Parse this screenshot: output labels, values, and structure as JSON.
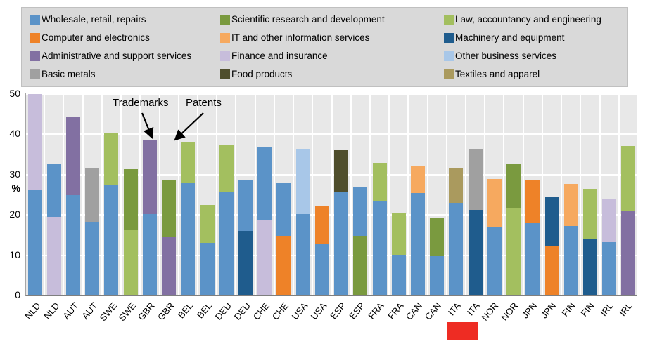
{
  "legend": {
    "items": [
      {
        "key": "wholesale",
        "label": "Wholesale, retail, repairs"
      },
      {
        "key": "computer",
        "label": "Computer and electronics"
      },
      {
        "key": "admin",
        "label": "Administrative and support services"
      },
      {
        "key": "basic_metals",
        "label": "Basic metals"
      },
      {
        "key": "scientific",
        "label": "Scientific research and development"
      },
      {
        "key": "it_services",
        "label": "IT and other information services"
      },
      {
        "key": "finance",
        "label": "Finance and insurance"
      },
      {
        "key": "food",
        "label": "Food products"
      },
      {
        "key": "law",
        "label": "Law, accountancy and engineering"
      },
      {
        "key": "machinery",
        "label": "Machinery and equipment"
      },
      {
        "key": "other_business",
        "label": "Other business services"
      },
      {
        "key": "textiles",
        "label": "Textiles and apparel"
      }
    ]
  },
  "colors": {
    "wholesale": "#5b93c8",
    "computer": "#ee8228",
    "admin": "#8270a2",
    "basic_metals": "#a0a0a0",
    "scientific": "#7a9a3f",
    "it_services": "#f6a95f",
    "finance": "#c7bddb",
    "food": "#4f4e2c",
    "law": "#a3bf5f",
    "machinery": "#1f5c8d",
    "other_business": "#a8c7e8",
    "textiles": "#aa9a5e"
  },
  "annotations": {
    "trademarks": "Trademarks",
    "patents": "Patents"
  },
  "highlight": {
    "color": "#ee2c23"
  },
  "chart_data": {
    "type": "bar",
    "stacked": true,
    "ylabel": "%",
    "ylim": [
      0,
      50
    ],
    "yticks": [
      0,
      10,
      20,
      30,
      40,
      50
    ],
    "grid": true,
    "legend_position": "top",
    "bar_pair_annotation": {
      "first": "Trademarks",
      "second": "Patents"
    },
    "bars": [
      {
        "country": "NLD",
        "type": "Trademarks",
        "segments": [
          {
            "sector": "wholesale",
            "value": 26.0
          },
          {
            "sector": "finance",
            "value": 23.8
          }
        ]
      },
      {
        "country": "NLD",
        "type": "Patents",
        "segments": [
          {
            "sector": "finance",
            "value": 19.3
          },
          {
            "sector": "wholesale",
            "value": 13.2
          }
        ]
      },
      {
        "country": "AUT",
        "type": "Trademarks",
        "segments": [
          {
            "sector": "wholesale",
            "value": 24.7
          },
          {
            "sector": "admin",
            "value": 19.5
          }
        ]
      },
      {
        "country": "AUT",
        "type": "Patents",
        "segments": [
          {
            "sector": "wholesale",
            "value": 18.1
          },
          {
            "sector": "basic_metals",
            "value": 13.2
          }
        ]
      },
      {
        "country": "SWE",
        "type": "Trademarks",
        "segments": [
          {
            "sector": "wholesale",
            "value": 27.1
          },
          {
            "sector": "law",
            "value": 13.1
          }
        ]
      },
      {
        "country": "SWE",
        "type": "Patents",
        "segments": [
          {
            "sector": "law",
            "value": 16.0
          },
          {
            "sector": "scientific",
            "value": 15.2
          }
        ]
      },
      {
        "country": "GBR",
        "type": "Trademarks",
        "segments": [
          {
            "sector": "wholesale",
            "value": 20.0
          },
          {
            "sector": "admin",
            "value": 18.5
          }
        ]
      },
      {
        "country": "GBR",
        "type": "Patents",
        "segments": [
          {
            "sector": "admin",
            "value": 14.5
          },
          {
            "sector": "scientific",
            "value": 14.1
          }
        ]
      },
      {
        "country": "BEL",
        "type": "Trademarks",
        "segments": [
          {
            "sector": "wholesale",
            "value": 27.9
          },
          {
            "sector": "law",
            "value": 10.1
          }
        ]
      },
      {
        "country": "BEL",
        "type": "Patents",
        "segments": [
          {
            "sector": "wholesale",
            "value": 12.9
          },
          {
            "sector": "law",
            "value": 9.4
          }
        ]
      },
      {
        "country": "DEU",
        "type": "Trademarks",
        "segments": [
          {
            "sector": "wholesale",
            "value": 25.6
          },
          {
            "sector": "law",
            "value": 11.6
          }
        ]
      },
      {
        "country": "DEU",
        "type": "Patents",
        "segments": [
          {
            "sector": "machinery",
            "value": 15.8
          },
          {
            "sector": "wholesale",
            "value": 12.8
          }
        ]
      },
      {
        "country": "CHE",
        "type": "Trademarks",
        "segments": [
          {
            "sector": "finance",
            "value": 18.5
          },
          {
            "sector": "wholesale",
            "value": 18.2
          }
        ]
      },
      {
        "country": "CHE",
        "type": "Patents",
        "segments": [
          {
            "sector": "computer",
            "value": 14.6
          },
          {
            "sector": "wholesale",
            "value": 13.2
          }
        ]
      },
      {
        "country": "USA",
        "type": "Trademarks",
        "segments": [
          {
            "sector": "wholesale",
            "value": 20.1
          },
          {
            "sector": "other_business",
            "value": 16.2
          }
        ]
      },
      {
        "country": "USA",
        "type": "Patents",
        "segments": [
          {
            "sector": "wholesale",
            "value": 12.7
          },
          {
            "sector": "computer",
            "value": 9.5
          }
        ]
      },
      {
        "country": "ESP",
        "type": "Trademarks",
        "segments": [
          {
            "sector": "wholesale",
            "value": 25.6
          },
          {
            "sector": "food",
            "value": 10.4
          }
        ]
      },
      {
        "country": "ESP",
        "type": "Patents",
        "segments": [
          {
            "sector": "scientific",
            "value": 14.7
          },
          {
            "sector": "wholesale",
            "value": 11.9
          }
        ]
      },
      {
        "country": "FRA",
        "type": "Trademarks",
        "segments": [
          {
            "sector": "wholesale",
            "value": 23.1
          },
          {
            "sector": "law",
            "value": 9.7
          }
        ]
      },
      {
        "country": "FRA",
        "type": "Patents",
        "segments": [
          {
            "sector": "wholesale",
            "value": 10.0
          },
          {
            "sector": "law",
            "value": 10.3
          }
        ]
      },
      {
        "country": "CAN",
        "type": "Trademarks",
        "segments": [
          {
            "sector": "wholesale",
            "value": 25.3
          },
          {
            "sector": "it_services",
            "value": 6.7
          }
        ]
      },
      {
        "country": "CAN",
        "type": "Patents",
        "segments": [
          {
            "sector": "wholesale",
            "value": 9.6
          },
          {
            "sector": "scientific",
            "value": 9.6
          }
        ]
      },
      {
        "country": "ITA",
        "type": "Trademarks",
        "segments": [
          {
            "sector": "wholesale",
            "value": 22.8
          },
          {
            "sector": "textiles",
            "value": 8.8
          }
        ]
      },
      {
        "country": "ITA",
        "type": "Patents",
        "segments": [
          {
            "sector": "machinery",
            "value": 21.0
          },
          {
            "sector": "basic_metals",
            "value": 15.2
          }
        ]
      },
      {
        "country": "NOR",
        "type": "Trademarks",
        "segments": [
          {
            "sector": "wholesale",
            "value": 16.9
          },
          {
            "sector": "it_services",
            "value": 11.9
          }
        ]
      },
      {
        "country": "NOR",
        "type": "Patents",
        "segments": [
          {
            "sector": "law",
            "value": 21.4
          },
          {
            "sector": "scientific",
            "value": 11.1
          }
        ]
      },
      {
        "country": "JPN",
        "type": "Trademarks",
        "segments": [
          {
            "sector": "wholesale",
            "value": 17.9
          },
          {
            "sector": "computer",
            "value": 10.7
          }
        ]
      },
      {
        "country": "JPN",
        "type": "Patents",
        "segments": [
          {
            "sector": "computer",
            "value": 12.0
          },
          {
            "sector": "machinery",
            "value": 12.3
          }
        ]
      },
      {
        "country": "FIN",
        "type": "Trademarks",
        "segments": [
          {
            "sector": "wholesale",
            "value": 17.1
          },
          {
            "sector": "it_services",
            "value": 10.5
          }
        ]
      },
      {
        "country": "FIN",
        "type": "Patents",
        "segments": [
          {
            "sector": "machinery",
            "value": 13.9
          },
          {
            "sector": "law",
            "value": 12.4
          }
        ]
      },
      {
        "country": "IRL",
        "type": "Trademarks",
        "segments": [
          {
            "sector": "wholesale",
            "value": 13.0
          },
          {
            "sector": "finance",
            "value": 10.7
          }
        ]
      },
      {
        "country": "IRL",
        "type": "Patents",
        "segments": [
          {
            "sector": "admin",
            "value": 20.7
          },
          {
            "sector": "law",
            "value": 16.2
          }
        ]
      }
    ]
  }
}
